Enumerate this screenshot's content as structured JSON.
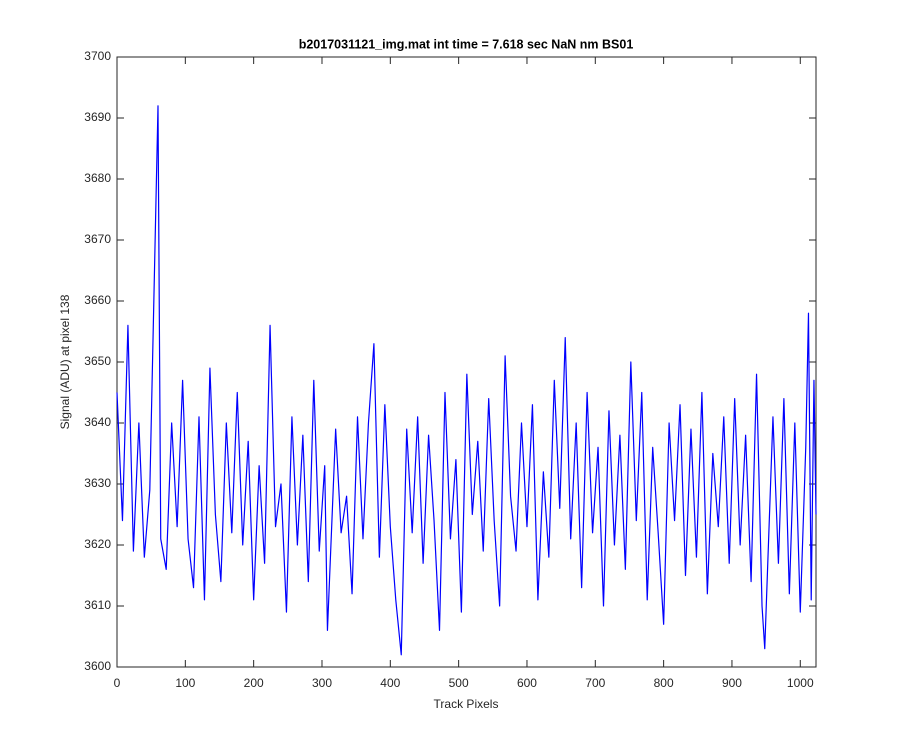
{
  "chart_data": {
    "type": "line",
    "title": "b2017031121_img.mat int time = 7.618 sec  NaN nm BS01",
    "x_label": "Track Pixels",
    "y_label": "Signal (ADU) at pixel 138",
    "xlim": [
      0,
      1023
    ],
    "ylim": [
      3600,
      3700
    ],
    "xticks": [
      0,
      100,
      200,
      300,
      400,
      500,
      600,
      700,
      800,
      900,
      1000
    ],
    "yticks": [
      3600,
      3610,
      3620,
      3630,
      3640,
      3650,
      3660,
      3670,
      3680,
      3690,
      3700
    ],
    "grid": false,
    "series": [
      {
        "color": "#0000ff",
        "x": [
          0,
          8,
          16,
          24,
          32,
          40,
          48,
          60,
          64,
          72,
          80,
          88,
          96,
          104,
          112,
          120,
          128,
          136,
          144,
          152,
          160,
          168,
          176,
          184,
          192,
          200,
          208,
          216,
          224,
          232,
          240,
          248,
          256,
          264,
          272,
          280,
          288,
          296,
          304,
          308,
          320,
          328,
          336,
          344,
          352,
          360,
          368,
          376,
          384,
          392,
          400,
          408,
          416,
          424,
          432,
          440,
          448,
          456,
          464,
          472,
          480,
          488,
          496,
          504,
          512,
          520,
          528,
          536,
          544,
          552,
          560,
          568,
          576,
          584,
          592,
          600,
          608,
          616,
          624,
          632,
          640,
          648,
          656,
          664,
          672,
          680,
          688,
          696,
          704,
          712,
          720,
          728,
          736,
          744,
          752,
          760,
          768,
          776,
          784,
          792,
          800,
          808,
          816,
          824,
          832,
          840,
          848,
          856,
          864,
          872,
          880,
          888,
          896,
          904,
          912,
          920,
          928,
          936,
          944,
          948,
          960,
          968,
          976,
          984,
          992,
          1000,
          1008,
          1012,
          1016,
          1020,
          1023
        ],
        "values": [
          3645,
          3624,
          3656,
          3619,
          3640,
          3618,
          3629,
          3692,
          3621,
          3616,
          3640,
          3623,
          3647,
          3621,
          3613,
          3641,
          3611,
          3649,
          3625,
          3614,
          3640,
          3622,
          3645,
          3620,
          3637,
          3611,
          3633,
          3617,
          3656,
          3623,
          3630,
          3609,
          3641,
          3620,
          3638,
          3614,
          3647,
          3619,
          3633,
          3606,
          3639,
          3622,
          3628,
          3612,
          3641,
          3621,
          3640,
          3653,
          3618,
          3643,
          3623,
          3611,
          3602,
          3639,
          3622,
          3641,
          3617,
          3638,
          3624,
          3606,
          3645,
          3621,
          3634,
          3609,
          3648,
          3625,
          3637,
          3619,
          3644,
          3624,
          3610,
          3651,
          3628,
          3619,
          3640,
          3623,
          3643,
          3611,
          3632,
          3618,
          3647,
          3626,
          3654,
          3621,
          3640,
          3613,
          3645,
          3622,
          3636,
          3610,
          3642,
          3620,
          3638,
          3616,
          3650,
          3624,
          3645,
          3611,
          3636,
          3622,
          3607,
          3640,
          3624,
          3643,
          3615,
          3639,
          3618,
          3645,
          3612,
          3635,
          3623,
          3641,
          3617,
          3644,
          3620,
          3638,
          3614,
          3648,
          3610,
          3603,
          3641,
          3617,
          3644,
          3612,
          3640,
          3609,
          3636,
          3658,
          3611,
          3647,
          3625
        ]
      }
    ]
  }
}
